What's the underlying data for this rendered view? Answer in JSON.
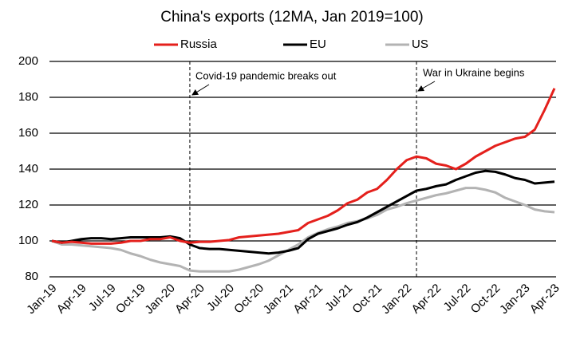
{
  "chart_data": {
    "type": "line",
    "title": "China's exports (12MA, Jan 2019=100)",
    "categories": [
      "Jan-19",
      null,
      null,
      "Apr-19",
      null,
      null,
      "Jul-19",
      null,
      null,
      "Oct-19",
      null,
      null,
      "Jan-20",
      null,
      null,
      "Apr-20",
      null,
      null,
      "Jul-20",
      null,
      null,
      "Oct-20",
      null,
      null,
      "Jan-21",
      null,
      null,
      "Apr-21",
      null,
      null,
      "Jul-21",
      null,
      null,
      "Oct-21",
      null,
      null,
      "Jan-22",
      null,
      null,
      "Apr-22",
      null,
      null,
      "Jul-22",
      null,
      null,
      "Oct-22",
      null,
      null,
      "Jan-23",
      null,
      null,
      "Apr-23"
    ],
    "series": [
      {
        "name": "Russia",
        "color": "#e4201c",
        "values": [
          100,
          99,
          99.5,
          99,
          98.5,
          98.5,
          98.5,
          99,
          100,
          100,
          101,
          101,
          102,
          100,
          99,
          99.5,
          99.5,
          100,
          100.5,
          102,
          102.5,
          103,
          103.5,
          104,
          105,
          106,
          110,
          112,
          114,
          117,
          121,
          123,
          127,
          129,
          134,
          140,
          145,
          147,
          146,
          143,
          142,
          140,
          143,
          147,
          150,
          153,
          155,
          157,
          158,
          162,
          173,
          185
        ]
      },
      {
        "name": "EU",
        "color": "#000000",
        "values": [
          100,
          99,
          100,
          101,
          101.5,
          101.5,
          101,
          101.5,
          102,
          102,
          102,
          102,
          102.5,
          101.5,
          98,
          96,
          95.5,
          95.5,
          95,
          94.5,
          94,
          93.5,
          93,
          93.5,
          94.5,
          96,
          101,
          104,
          105.5,
          107,
          109,
          110.5,
          113,
          116,
          119,
          122,
          125,
          128,
          129,
          130.5,
          131.5,
          134,
          136,
          138,
          139,
          138.5,
          137,
          135,
          134,
          132,
          132.5,
          133
        ]
      },
      {
        "name": "US",
        "color": "#b3b3b3",
        "values": [
          100,
          98,
          98,
          97.5,
          97,
          96.5,
          96,
          95,
          93,
          91.5,
          89.5,
          88,
          87,
          86,
          83.5,
          83,
          83,
          83,
          83,
          84,
          85.5,
          87,
          89,
          92,
          95,
          98,
          102,
          104.5,
          106.5,
          108,
          110,
          111,
          112.5,
          114.5,
          117.5,
          119,
          121,
          122.5,
          124,
          125.5,
          126.5,
          128,
          129.5,
          129.5,
          128.5,
          127,
          124,
          122,
          120,
          117.5,
          116.5,
          116
        ]
      }
    ],
    "annotations": [
      "Covid-19 pandemic breaks out",
      "War in Ukraine begins"
    ],
    "ylim": [
      80,
      200
    ],
    "yticks": [
      80,
      100,
      120,
      140,
      160,
      180,
      200
    ],
    "grid": true,
    "legend": "top"
  }
}
